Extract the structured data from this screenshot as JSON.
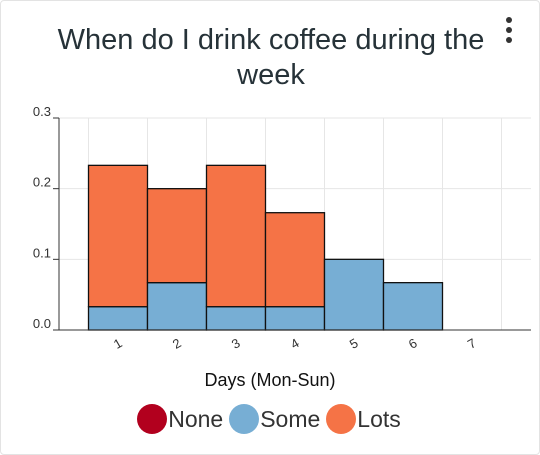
{
  "card": {
    "title": "When do I drink coffee during the week"
  },
  "chart_data": {
    "type": "bar",
    "stacked": true,
    "categories": [
      "1",
      "2",
      "3",
      "4",
      "5",
      "6",
      "7"
    ],
    "series": [
      {
        "name": "None",
        "color": "#b2001e",
        "values": [
          0,
          0,
          0,
          0,
          0,
          0,
          0
        ]
      },
      {
        "name": "Some",
        "color": "#77aed4",
        "values": [
          0.033,
          0.067,
          0.033,
          0.033,
          0.1,
          0.067,
          0
        ]
      },
      {
        "name": "Lots",
        "color": "#f57346",
        "values": [
          0.2,
          0.133,
          0.2,
          0.133,
          0,
          0,
          0
        ]
      }
    ],
    "xlabel": "Days (Mon-Sun)",
    "ylabel": "",
    "ylim": [
      0,
      0.3
    ],
    "yticks": [
      "0.0",
      "0.1",
      "0.2",
      "0.3"
    ],
    "grid": true,
    "legend": "bottom"
  }
}
